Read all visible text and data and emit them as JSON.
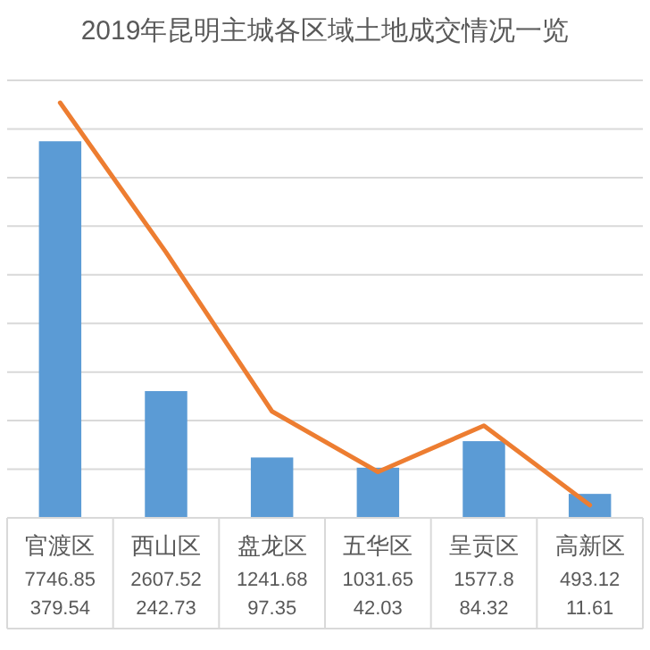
{
  "chart_data": {
    "type": "bar",
    "title": "2019年昆明主城各区域土地成交情况一览",
    "categories": [
      "官渡区",
      "西山区",
      "盘龙区",
      "五华区",
      "呈贡区",
      "高新区"
    ],
    "series": [
      {
        "color": "#5b9bd5",
        "values": [
          7746.85,
          2607.52,
          1241.68,
          1031.65,
          1577.8,
          493.12
        ]
      },
      {
        "type": "line",
        "axis": "y2",
        "color": "#ed7d31",
        "values": [
          379.54,
          242.73,
          97.35,
          42.03,
          84.32,
          11.61
        ]
      }
    ],
    "ylim": [
      0,
      9000
    ],
    "yticks": [
      {
        "value": 0,
        "label": null
      },
      {
        "value": 1000,
        "label": null
      },
      {
        "value": 2000,
        "label": null
      },
      {
        "value": 3000,
        "label": null
      },
      {
        "value": 4000,
        "label": null
      },
      {
        "value": 5000,
        "label": null
      },
      {
        "value": 6000,
        "label": null
      },
      {
        "value": 7000,
        "label": null
      },
      {
        "value": 8000,
        "label": null
      },
      {
        "value": 9000,
        "label": null
      }
    ],
    "y2lim": [
      0,
      400
    ],
    "grid": "y",
    "data_labels": true
  }
}
